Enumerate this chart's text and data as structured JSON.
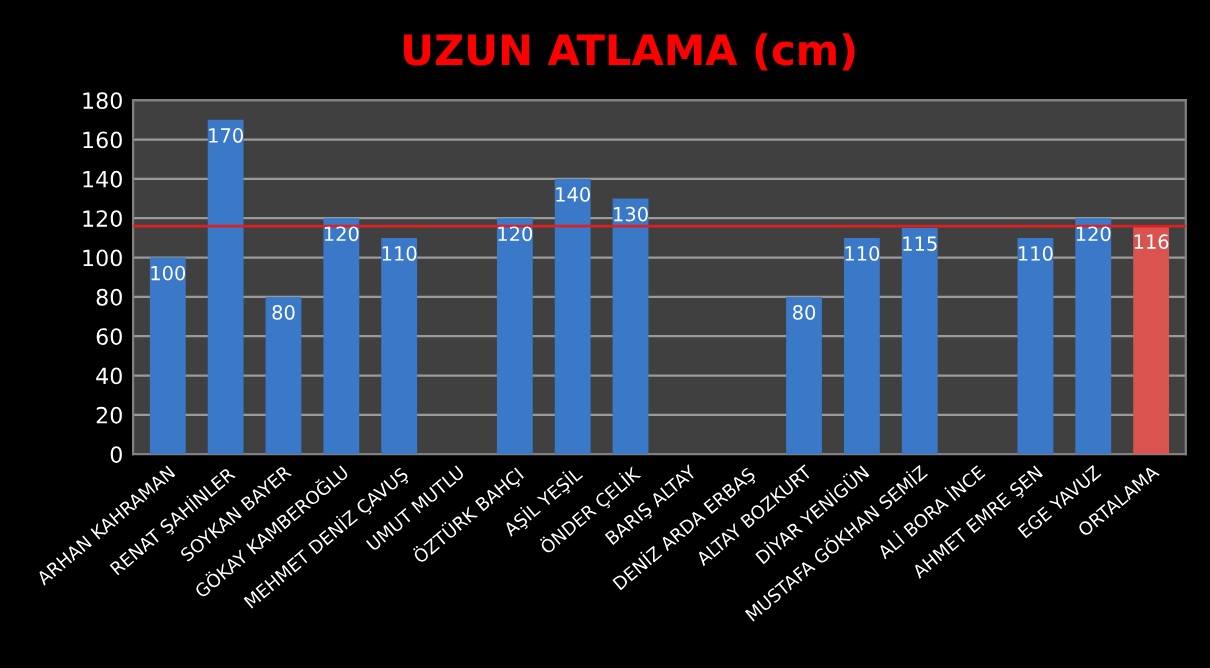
{
  "chart_data": {
    "type": "bar",
    "title": "UZUN ATLAMA (cm)",
    "categories": [
      "ARHAN KAHRAMAN",
      "RENAT ŞAHİNLER",
      "SOYKAN BAYER",
      "GÖKAY KAMBEROĞLU",
      "MEHMET DENİZ ÇAVUŞ",
      "UMUT MUTLU",
      "ÖZTÜRK BAHÇI",
      "AŞİL YEŞİL",
      "ÖNDER ÇELİK",
      "BARIŞ ALTAY",
      "DENİZ ARDA ERBAŞ",
      "ALTAY BOZKURT",
      "DİYAR YENİGÜN",
      "MUSTAFA GÖKHAN SEMİZ",
      "ALİ BORA İNCE",
      "AHMET EMRE ŞEN",
      "EGE YAVUZ",
      "ORTALAMA"
    ],
    "values": [
      100,
      170,
      80,
      120,
      110,
      null,
      120,
      140,
      130,
      null,
      null,
      80,
      110,
      115,
      null,
      110,
      120,
      116
    ],
    "colors": [
      "#3a78c8",
      "#3a78c8",
      "#3a78c8",
      "#3a78c8",
      "#3a78c8",
      "#3a78c8",
      "#3a78c8",
      "#3a78c8",
      "#3a78c8",
      "#3a78c8",
      "#3a78c8",
      "#3a78c8",
      "#3a78c8",
      "#3a78c8",
      "#3a78c8",
      "#3a78c8",
      "#3a78c8",
      "#d9534f"
    ],
    "ylim": [
      0,
      180
    ],
    "yticks": [
      0,
      20,
      40,
      60,
      80,
      100,
      120,
      140,
      160,
      180
    ],
    "ref_lines": [
      {
        "axis": "y",
        "value": 116,
        "color": "#e02020"
      }
    ],
    "data_labels": true,
    "grid": "y"
  }
}
